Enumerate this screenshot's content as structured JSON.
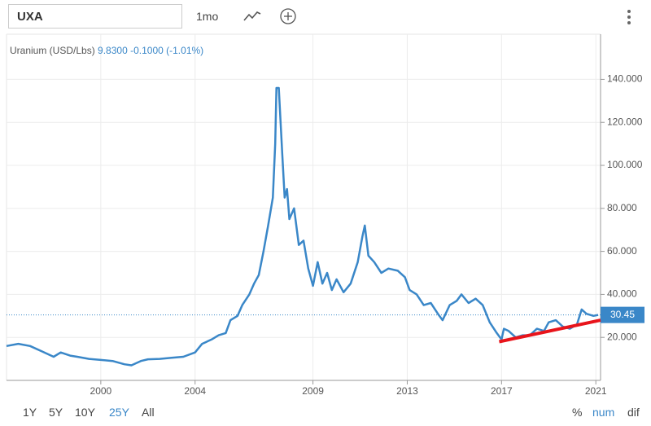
{
  "toolbar": {
    "symbol": "UXA",
    "interval": "1mo"
  },
  "ranges": [
    "1Y",
    "5Y",
    "10Y",
    "25Y",
    "All"
  ],
  "modes": [
    "%",
    "num",
    "dif"
  ],
  "chart_data": {
    "type": "line",
    "quote": {
      "price": "9.8300",
      "change": "-0.1000",
      "change_pct": "(-1.01%)"
    },
    "x": [
      1996.0,
      1996.5,
      1997.0,
      1997.5,
      1998.0,
      1998.3,
      1998.7,
      1999.0,
      1999.5,
      2000.0,
      2000.5,
      2001.0,
      2001.3,
      2001.7,
      2002.0,
      2002.5,
      2003.0,
      2003.5,
      2004.0,
      2004.3,
      2004.7,
      2005.0,
      2005.3,
      2005.5,
      2005.8,
      2006.0,
      2006.3,
      2006.5,
      2006.7,
      2006.9,
      2007.1,
      2007.3,
      2007.4,
      2007.45,
      2007.55,
      2007.7,
      2007.8,
      2007.9,
      2008.0,
      2008.2,
      2008.4,
      2008.6,
      2008.8,
      2009.0,
      2009.2,
      2009.4,
      2009.6,
      2009.8,
      2010.0,
      2010.3,
      2010.6,
      2010.9,
      2011.1,
      2011.2,
      2011.35,
      2011.6,
      2011.9,
      2012.2,
      2012.6,
      2012.9,
      2013.1,
      2013.4,
      2013.7,
      2014.0,
      2014.3,
      2014.5,
      2014.8,
      2015.1,
      2015.3,
      2015.6,
      2015.9,
      2016.2,
      2016.5,
      2016.8,
      2017.0,
      2017.1,
      2017.3,
      2017.6,
      2017.9,
      2018.2,
      2018.5,
      2018.8,
      2019.0,
      2019.3,
      2019.6,
      2019.9,
      2020.2,
      2020.4,
      2020.6,
      2020.9,
      2021.1
    ],
    "series": [
      {
        "name": "Uranium (USD/Lbs)",
        "color": "#3a87c8",
        "values": [
          16,
          17,
          16,
          13.5,
          11,
          13,
          11.5,
          11,
          10,
          9.5,
          9,
          7.5,
          7,
          9,
          9.8,
          10,
          10.5,
          11,
          13,
          17,
          19,
          21,
          22,
          28,
          30,
          35,
          40,
          45,
          49,
          60,
          72,
          85,
          110,
          136,
          136,
          105,
          85,
          89,
          75,
          80,
          63,
          65,
          52,
          44,
          55,
          45,
          50,
          42,
          47,
          41,
          45,
          55,
          67,
          72,
          58,
          55,
          50,
          52,
          51,
          48,
          42,
          40,
          35,
          36,
          31,
          28,
          35,
          37,
          40,
          36,
          38,
          35,
          27,
          22,
          19,
          24,
          23,
          20,
          21,
          21,
          24,
          23,
          27,
          28,
          25,
          24,
          26,
          33,
          31,
          30,
          30.45
        ]
      }
    ],
    "trendline": {
      "x": [
        2016.9,
        2021.2
      ],
      "values": [
        18,
        28
      ],
      "color": "#e8141b"
    },
    "xlim": [
      1996,
      2021.2
    ],
    "ylim": [
      0,
      161
    ],
    "xticks": [
      2000,
      2004,
      2009,
      2013,
      2017,
      2021
    ],
    "yticks": [
      {
        "value": 20,
        "label": "20.000"
      },
      {
        "value": 40,
        "label": "40.000"
      },
      {
        "value": 60,
        "label": "60.000"
      },
      {
        "value": 80,
        "label": "80.000"
      },
      {
        "value": 100,
        "label": "100.000"
      },
      {
        "value": 120,
        "label": "120.000"
      },
      {
        "value": 140,
        "label": "140.000"
      }
    ],
    "grid": true
  }
}
